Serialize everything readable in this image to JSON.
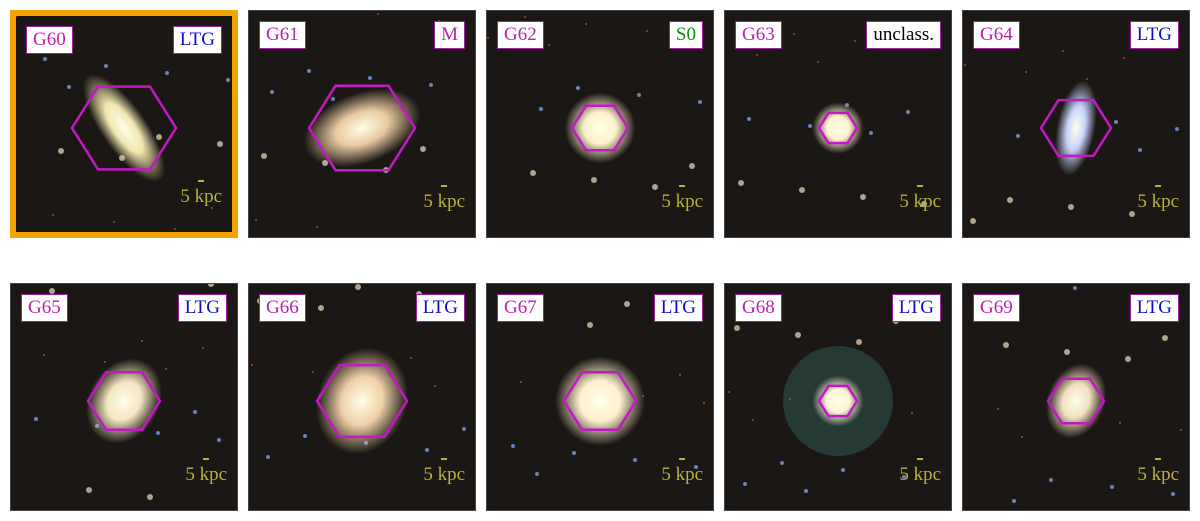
{
  "panels": [
    {
      "id": "G60",
      "class": "LTG",
      "class_color": "#1010c8",
      "scale": "5 kpc",
      "selected": true
    },
    {
      "id": "G61",
      "class": "M",
      "class_color": "#c020b0",
      "scale": "5 kpc"
    },
    {
      "id": "G62",
      "class": "S0",
      "class_color": "#108a10",
      "scale": "5 kpc"
    },
    {
      "id": "G63",
      "class": "unclass.",
      "class_color": "#000000",
      "scale": "5 kpc"
    },
    {
      "id": "G64",
      "class": "LTG",
      "class_color": "#1010c8",
      "scale": "5 kpc"
    },
    {
      "id": "G65",
      "class": "LTG",
      "class_color": "#1010c8",
      "scale": "5 kpc"
    },
    {
      "id": "G66",
      "class": "LTG",
      "class_color": "#1010c8",
      "scale": "5 kpc"
    },
    {
      "id": "G67",
      "class": "LTG",
      "class_color": "#1010c8",
      "scale": "5 kpc"
    },
    {
      "id": "G68",
      "class": "LTG",
      "class_color": "#1010c8",
      "scale": "5 kpc"
    },
    {
      "id": "G69",
      "class": "LTG",
      "class_color": "#1010c8",
      "scale": "5 kpc"
    }
  ]
}
